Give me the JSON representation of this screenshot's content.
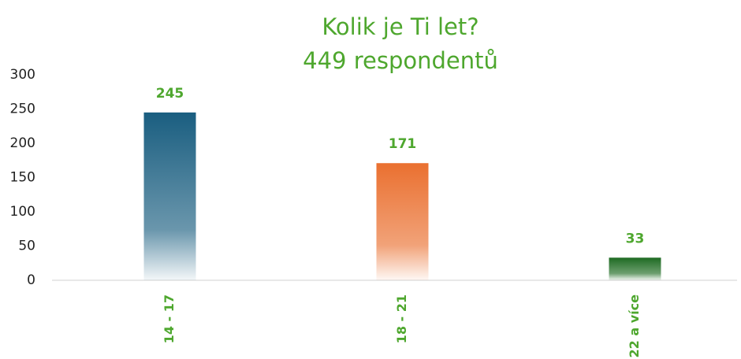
{
  "chart_data": {
    "type": "bar",
    "title": "Kolik je Ti let?",
    "subtitle": "449 respondentů",
    "categories": [
      "14 - 17",
      "18 - 21",
      "22 a více"
    ],
    "values": [
      245,
      171,
      33
    ],
    "colors": [
      "#1a5e80",
      "#ea7030",
      "#1e6b22"
    ],
    "ylim": [
      0,
      300
    ],
    "yticks": [
      0,
      50,
      100,
      150,
      200,
      250,
      300
    ],
    "grid": false
  }
}
